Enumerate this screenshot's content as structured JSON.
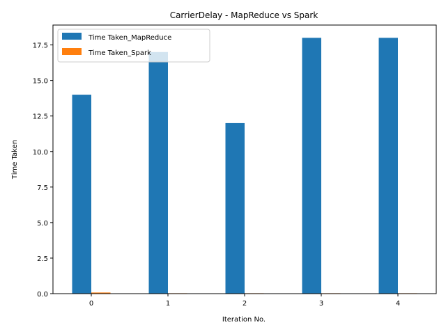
{
  "chart_data": {
    "type": "bar",
    "title": "CarrierDelay - MapReduce vs Spark",
    "xlabel": "Iteration No.",
    "ylabel": "Time Taken",
    "categories": [
      "0",
      "1",
      "2",
      "3",
      "4"
    ],
    "series": [
      {
        "name": "Time Taken_MapReduce",
        "values": [
          14,
          17,
          12,
          18,
          18
        ],
        "color": "#1f77b4"
      },
      {
        "name": "Time Taken_Spark",
        "values": [
          0.08,
          0.03,
          0.03,
          0.03,
          0.03
        ],
        "color": "#ff7f0e"
      }
    ],
    "ylim": [
      0,
      18.9
    ],
    "yticks": [
      "0.0",
      "2.5",
      "5.0",
      "7.5",
      "10.0",
      "12.5",
      "15.0",
      "17.5"
    ],
    "ytick_values": [
      0,
      2.5,
      5,
      7.5,
      10,
      12.5,
      15,
      17.5
    ],
    "grid": false,
    "legend_position": "top-left"
  }
}
